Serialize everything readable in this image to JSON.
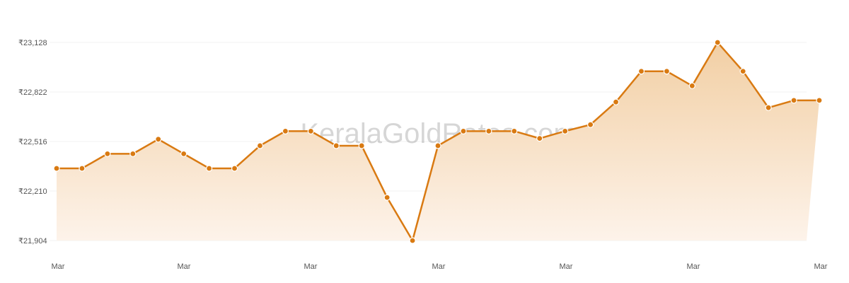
{
  "watermark": "KeralaGoldRates.com",
  "colors": {
    "line": "#d97a12",
    "area_top": "#f2cfa4",
    "area_bottom": "#fdf3ea",
    "grid": "#f0f0f0",
    "marker_stroke": "#ffffff"
  },
  "chart_data": {
    "type": "area",
    "y_ticks": [
      "₹23,128",
      "₹22,822",
      "₹22,516",
      "₹22,210",
      "₹21,904"
    ],
    "y_tick_values": [
      23128,
      22822,
      22516,
      22210,
      21904
    ],
    "x_tick_labels": [
      "Mar",
      "Mar",
      "Mar",
      "Mar",
      "Mar",
      "Mar",
      "Mar"
    ],
    "ylim": [
      21904,
      23128
    ],
    "grid": true,
    "series": [
      {
        "values": [
          22350,
          22350,
          22440,
          22440,
          22530,
          22440,
          22350,
          22350,
          22490,
          22580,
          22580,
          22490,
          22490,
          22170,
          21904,
          22490,
          22580,
          22580,
          22580,
          22535,
          22580,
          22620,
          22760,
          22950,
          22950,
          22860,
          23128,
          22950,
          22725,
          22770,
          22770
        ]
      }
    ]
  }
}
